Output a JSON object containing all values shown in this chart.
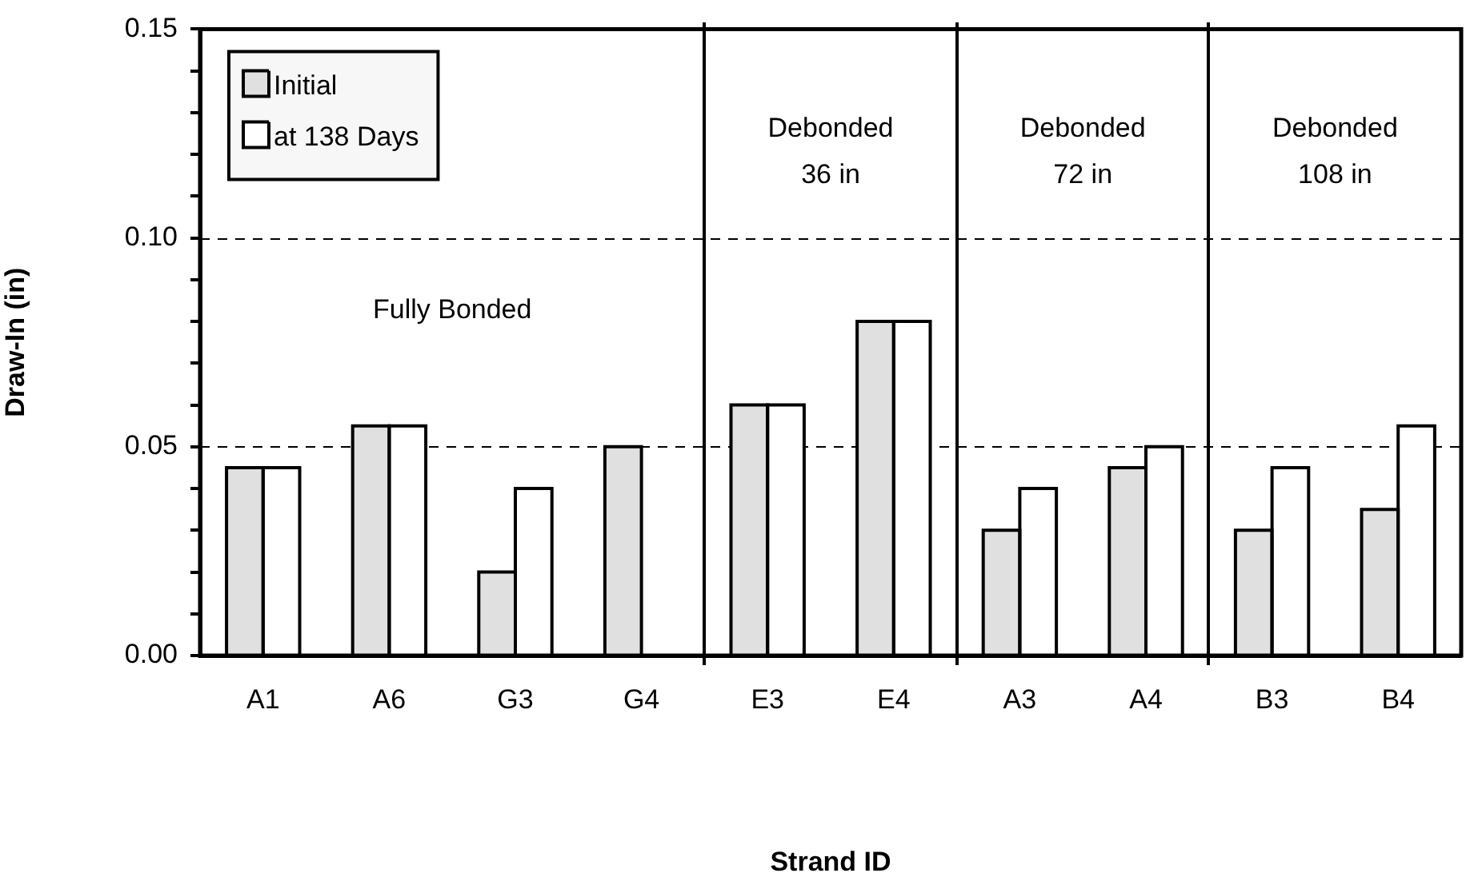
{
  "chart_data": {
    "type": "bar",
    "xlabel": "Strand ID",
    "ylabel": "Draw-In (in)",
    "categories": [
      "A1",
      "A6",
      "G3",
      "G4",
      "E3",
      "E4",
      "A3",
      "A4",
      "B3",
      "B4"
    ],
    "series": [
      {
        "name": "Initial",
        "color": "#e0e0e0",
        "values": [
          0.045,
          0.055,
          0.02,
          0.05,
          0.06,
          0.08,
          0.03,
          0.045,
          0.03,
          0.035
        ]
      },
      {
        "name": "at 138 Days",
        "color": "#ffffff",
        "values": [
          0.045,
          0.055,
          0.04,
          null,
          0.06,
          0.08,
          0.04,
          0.05,
          0.045,
          0.055
        ]
      }
    ],
    "ylim": [
      0,
      0.15
    ],
    "yticks": [
      {
        "value": 0,
        "label": "0.00"
      },
      {
        "value": 0.01,
        "label": null
      },
      {
        "value": 0.02,
        "label": null
      },
      {
        "value": 0.03,
        "label": null
      },
      {
        "value": 0.04,
        "label": null
      },
      {
        "value": 0.05,
        "label": "0.05"
      },
      {
        "value": 0.06,
        "label": null
      },
      {
        "value": 0.07,
        "label": null
      },
      {
        "value": 0.08,
        "label": null
      },
      {
        "value": 0.09,
        "label": null
      },
      {
        "value": 0.1,
        "label": "0.10"
      },
      {
        "value": 0.11,
        "label": null
      },
      {
        "value": 0.12,
        "label": null
      },
      {
        "value": 0.13,
        "label": null
      },
      {
        "value": 0.14,
        "label": null
      },
      {
        "value": 0.15,
        "label": "0.15"
      }
    ],
    "annotations": [
      "Fully Bonded",
      "Debonded\n36 in",
      "Debonded\n72 in",
      "Debonded\n108 in"
    ],
    "grid": "y",
    "line_style": "dashed",
    "legend": "top left"
  }
}
